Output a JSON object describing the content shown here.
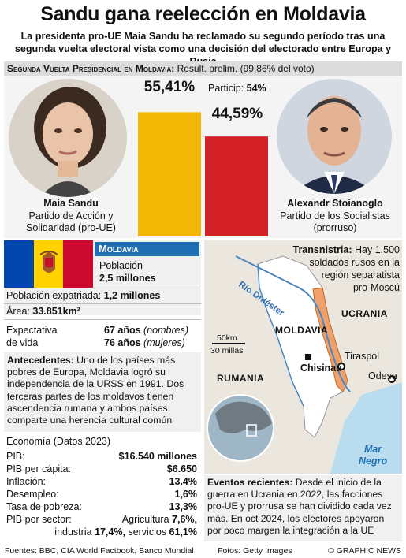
{
  "header": {
    "title": "Sandu gana reelección en Moldavia",
    "subtitle": "La presidenta pro-UE Maia Sandu ha reclamado su segundo período tras una segunda vuelta electoral vista como una decisión del electorado entre  Europa y Rusia"
  },
  "results": {
    "section_title": "Segunda Vuelta Presidencial en Moldavia:",
    "section_note": "Result. prelim.  (99,86% del voto)",
    "turnout_label": "Particip:",
    "turnout_value": "54%",
    "candidates": [
      {
        "name": "Maia Sandu",
        "party_line1": "Partido de Acción y",
        "party_line2": "Solidaridad (pro-UE)",
        "pct_label": "55,41%"
      },
      {
        "name": "Alexandr Stoianoglo",
        "party_line1": "Partido de los Socialistas",
        "party_line2": "(prorruso)",
        "pct_label": "44,59%"
      }
    ]
  },
  "chart_data": {
    "type": "bar",
    "categories": [
      "Maia Sandu",
      "Alexandr Stoianoglo"
    ],
    "values": [
      55.41,
      44.59
    ],
    "title": "Segunda Vuelta Presidencial en Moldavia",
    "xlabel": "",
    "ylabel": "",
    "ylim": [
      0,
      60
    ],
    "colors": [
      "#f2b705",
      "#d42027"
    ]
  },
  "facts": {
    "country_label": "Moldavia",
    "population_label": "Población",
    "population_value": "2,5 millones",
    "expat_label": "Población expatriada:",
    "expat_value": "1,2 millones",
    "area_label": "Área:",
    "area_value": "33.851km²",
    "life_label_1": "Expectativa",
    "life_label_2": "de vida",
    "life_m_value": "67 años",
    "life_m_note": "(nombres)",
    "life_f_value": "76 años",
    "life_f_note": "(mujeres)",
    "background_label": "Antecedentes:",
    "background_text": "Uno de los países más pobres de Europa, Moldavia logró su independencia de la URSS en 1991. Dos terceras partes de los moldavos tienen ascendencia rumana y ambos países comparte una herencia cultural común"
  },
  "economy": {
    "heading": "Economía (Datos 2023)",
    "rows": [
      {
        "label": "PIB:",
        "value": "$16.540 millones"
      },
      {
        "label": "PIB per cápita:",
        "value": "$6.650"
      },
      {
        "label": "Inflación:",
        "value": "13.4%"
      },
      {
        "label": "Desempleo:",
        "value": "1,6%"
      },
      {
        "label": "Tasa de pobreza:",
        "value": "13,3%"
      }
    ],
    "sector_label": "PIB por sector:",
    "sector_agri_label": "Agricultura",
    "sector_agri_value": "7,6%,",
    "sector_ind_label": "industria",
    "sector_ind_value": "17,4%,",
    "sector_serv_label": "servicios",
    "sector_serv_value": "61,1%"
  },
  "map": {
    "transnistria_title": "Transnistria:",
    "transnistria_text_1": "Hay 1.500",
    "transnistria_text_2": "soldados rusos en la",
    "transnistria_text_3": "región separatista",
    "transnistria_text_4": "pro-Moscú",
    "river_label": "Río Dniéster",
    "ukraine_label": "UCRANIA",
    "moldova_label": "MOLDAVIA",
    "romania_label": "RUMANIA",
    "sea_label_1": "Mar",
    "sea_label_2": "Negro",
    "scale_km": "50km",
    "scale_mi": "30 millas",
    "cities": [
      "Chisinau",
      "Tiraspol",
      "Odesa"
    ],
    "events_label": "Eventos recientes:",
    "events_text": "Desde el inicio de la guerra en Ucrania en 2022, las facciones pro-UE y prorrusa se han dividido cada vez más. En oct 2024, los electores apoyaron por poco margen la integración a la UE"
  },
  "footer": {
    "sources": "Fuentes: BBC, CIA World Factbook, Banco Mundial",
    "photos": "Fotos: Getty Images",
    "credit": "© GRAPHIC NEWS"
  },
  "colors": {
    "sandu_bar": "#f2b705",
    "stoianoglo_bar": "#d42027",
    "moldova_blue": "#1f6fb5",
    "transnistria": "#f0a06a",
    "sea": "#b9dcef"
  }
}
